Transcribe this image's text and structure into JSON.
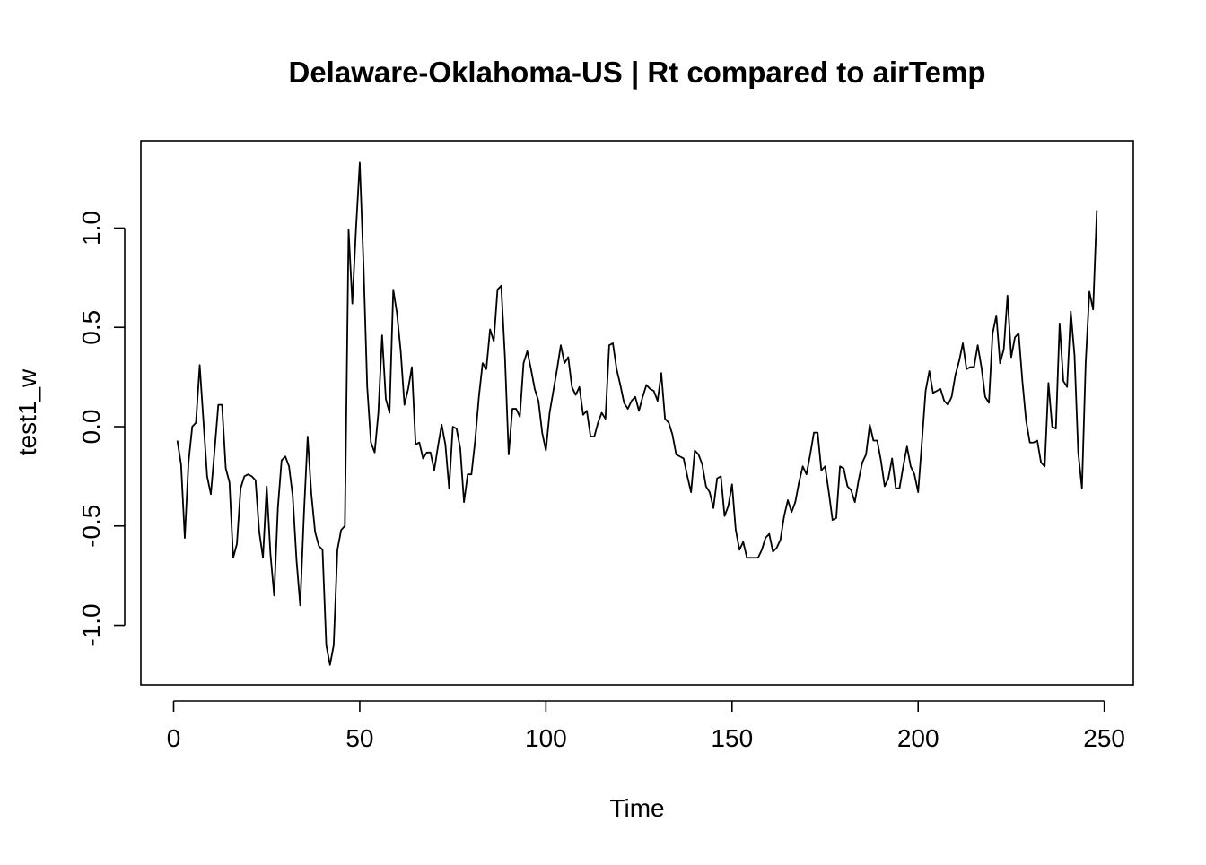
{
  "chart_data": {
    "type": "line",
    "title": "Delaware-Oklahoma-US | Rt compared to airTemp",
    "xlabel": "Time",
    "ylabel": "test1_w",
    "xlim": [
      -8.8,
      257.8
    ],
    "ylim": [
      -1.3,
      1.44
    ],
    "x_ticks": [
      0,
      50,
      100,
      150,
      200,
      250
    ],
    "y_ticks": [
      -1.0,
      -0.5,
      0.0,
      0.5,
      1.0
    ],
    "x_tick_labels": [
      "0",
      "50",
      "100",
      "150",
      "200",
      "250"
    ],
    "y_tick_labels": [
      "-1.0",
      "-0.5",
      "0.0",
      "0.5",
      "1.0"
    ],
    "line_color": "#000000",
    "grid": false,
    "legend": "none",
    "series": [
      {
        "x_start": 1,
        "x_step": 1,
        "values": [
          -0.07,
          -0.19,
          -0.56,
          -0.18,
          0.0,
          0.02,
          0.31,
          0.03,
          -0.25,
          -0.34,
          -0.12,
          0.11,
          0.11,
          -0.21,
          -0.28,
          -0.66,
          -0.59,
          -0.31,
          -0.25,
          -0.24,
          -0.25,
          -0.27,
          -0.53,
          -0.66,
          -0.3,
          -0.64,
          -0.85,
          -0.41,
          -0.17,
          -0.15,
          -0.2,
          -0.35,
          -0.67,
          -0.9,
          -0.44,
          -0.05,
          -0.34,
          -0.53,
          -0.6,
          -0.62,
          -1.1,
          -1.2,
          -1.1,
          -0.62,
          -0.52,
          -0.5,
          0.99,
          0.62,
          1.0,
          1.33,
          0.82,
          0.2,
          -0.08,
          -0.13,
          0.07,
          0.46,
          0.14,
          0.07,
          0.69,
          0.57,
          0.38,
          0.11,
          0.19,
          0.3,
          -0.09,
          -0.08,
          -0.16,
          -0.13,
          -0.13,
          -0.22,
          -0.1,
          0.01,
          -0.09,
          -0.31,
          0.0,
          -0.01,
          -0.11,
          -0.38,
          -0.24,
          -0.24,
          -0.07,
          0.15,
          0.32,
          0.29,
          0.49,
          0.43,
          0.69,
          0.71,
          0.35,
          -0.14,
          0.09,
          0.09,
          0.05,
          0.32,
          0.38,
          0.29,
          0.19,
          0.13,
          -0.03,
          -0.12,
          0.07,
          0.18,
          0.29,
          0.41,
          0.32,
          0.35,
          0.2,
          0.16,
          0.2,
          0.06,
          0.08,
          -0.05,
          -0.05,
          0.02,
          0.07,
          0.04,
          0.41,
          0.42,
          0.29,
          0.21,
          0.12,
          0.09,
          0.13,
          0.15,
          0.08,
          0.15,
          0.21,
          0.19,
          0.18,
          0.13,
          0.27,
          0.04,
          0.02,
          -0.04,
          -0.14,
          -0.15,
          -0.16,
          -0.25,
          -0.33,
          -0.12,
          -0.14,
          -0.19,
          -0.3,
          -0.33,
          -0.41,
          -0.26,
          -0.25,
          -0.45,
          -0.4,
          -0.29,
          -0.52,
          -0.62,
          -0.58,
          -0.66,
          -0.66,
          -0.66,
          -0.66,
          -0.62,
          -0.56,
          -0.54,
          -0.63,
          -0.61,
          -0.57,
          -0.45,
          -0.37,
          -0.43,
          -0.38,
          -0.28,
          -0.2,
          -0.24,
          -0.14,
          -0.03,
          -0.03,
          -0.22,
          -0.2,
          -0.33,
          -0.47,
          -0.46,
          -0.2,
          -0.21,
          -0.3,
          -0.32,
          -0.38,
          -0.27,
          -0.18,
          -0.14,
          0.01,
          -0.07,
          -0.07,
          -0.17,
          -0.3,
          -0.26,
          -0.16,
          -0.31,
          -0.31,
          -0.2,
          -0.1,
          -0.2,
          -0.24,
          -0.33,
          -0.08,
          0.18,
          0.28,
          0.17,
          0.18,
          0.19,
          0.13,
          0.11,
          0.15,
          0.26,
          0.33,
          0.42,
          0.29,
          0.3,
          0.3,
          0.41,
          0.3,
          0.15,
          0.12,
          0.47,
          0.56,
          0.32,
          0.39,
          0.66,
          0.35,
          0.45,
          0.47,
          0.23,
          0.03,
          -0.08,
          -0.08,
          -0.07,
          -0.18,
          -0.2,
          0.22,
          0.0,
          -0.01,
          0.52,
          0.23,
          0.2,
          0.58,
          0.36,
          -0.13,
          -0.31,
          0.32,
          0.68,
          0.59,
          1.09
        ]
      }
    ]
  }
}
